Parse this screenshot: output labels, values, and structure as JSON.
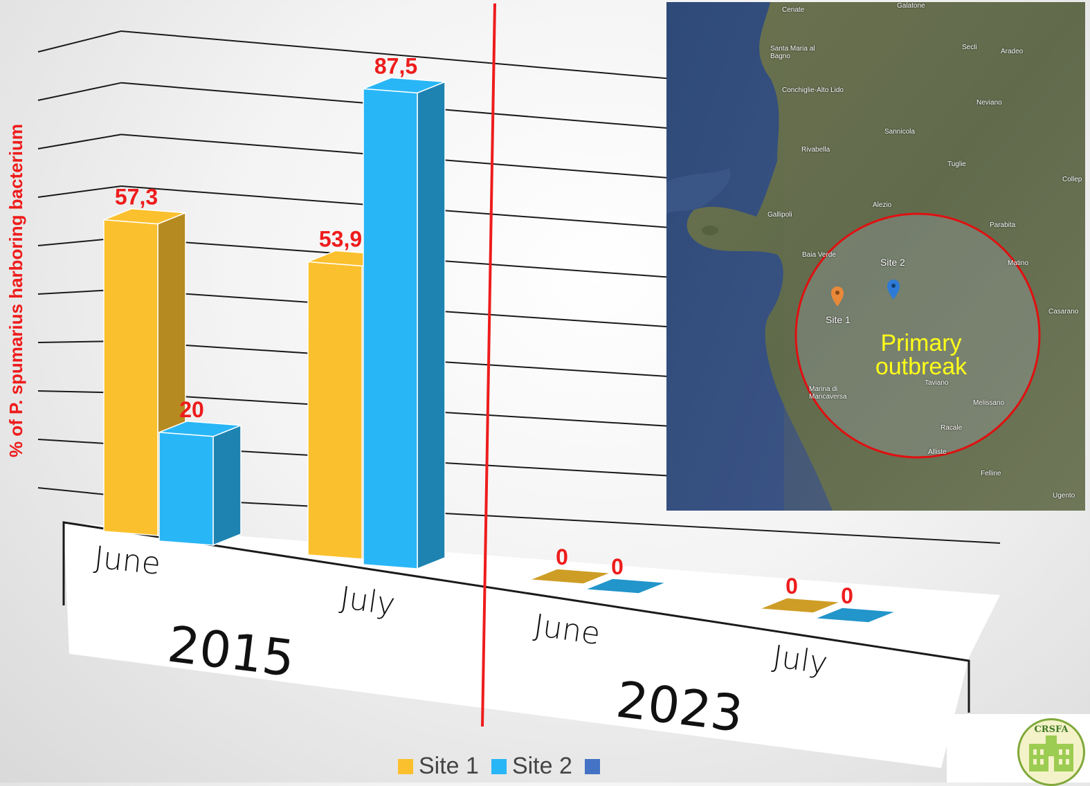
{
  "chart_data": {
    "type": "bar",
    "ylabel": "% of P. spumarius harboring bacterium",
    "categories": [
      "June",
      "July",
      "June",
      "July"
    ],
    "groups": [
      {
        "label": "2015",
        "categories": [
          "June",
          "July"
        ]
      },
      {
        "label": "2023",
        "categories": [
          "June",
          "July"
        ]
      }
    ],
    "series": [
      {
        "name": "Site 1",
        "color": "#FBC02D",
        "values": [
          57.3,
          53.9,
          0,
          0
        ],
        "labels": [
          "57,3",
          "53,9",
          "0",
          "0"
        ]
      },
      {
        "name": "Site 2",
        "color": "#29B6F6",
        "values": [
          20,
          87.5,
          0,
          0
        ],
        "labels": [
          "20",
          "87,5",
          "0",
          "0"
        ]
      }
    ],
    "legend": [
      {
        "name": "Site 1",
        "color": "#FBC02D"
      },
      {
        "name": "Site 2",
        "color": "#29B6F6"
      },
      {
        "name": "",
        "color": "#4472C4"
      }
    ],
    "ylim": [
      0,
      100
    ],
    "label_color": "#EE1C1C",
    "divider_color": "#EE1C1C"
  },
  "map": {
    "places": [
      "Cenate",
      "Galatone",
      "Santa Maria al Bagno",
      "Secli",
      "Aradeo",
      "Conchiglie-Alto Lido",
      "Neviano",
      "Sannicola",
      "Rivabella",
      "Tuglie",
      "Collep",
      "Gallipoli",
      "Alezio",
      "Parabita",
      "Baia Verde",
      "Site 2",
      "Matino",
      "Site 1",
      "Casarano",
      "Marina di Mancaversa",
      "Taviano",
      "Melissano",
      "Racale",
      "Alliste",
      "Felline",
      "Ugento"
    ],
    "outbreak_label": "Primary outbreak",
    "site1_color": "#E8893A",
    "site2_color": "#2E7BD6",
    "circle_color": "#E01010"
  },
  "logo": {
    "text": "CRSFA"
  }
}
